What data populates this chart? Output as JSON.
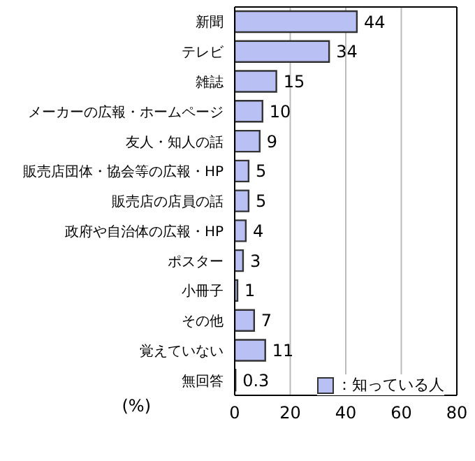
{
  "chart_data": {
    "type": "bar",
    "orientation": "horizontal",
    "categories": [
      "新聞",
      "テレビ",
      "雑誌",
      "メーカーの広報・ホームページ",
      "友人・知人の話",
      "販売店団体・協会等の広報・HP",
      "販売店の店員の話",
      "政府や自治体の広報・HP",
      "ポスター",
      "小冊子",
      "その他",
      "覚えていない",
      "無回答"
    ],
    "series": [
      {
        "name": "：知っている人",
        "color": "#b8c0f4",
        "values": [
          44,
          34,
          15,
          10,
          9,
          5,
          5,
          4,
          3,
          1,
          7,
          11,
          0.3
        ]
      }
    ],
    "xlabel": "(%)",
    "xlim": [
      0,
      80
    ],
    "xticks": [
      0,
      20,
      40,
      60,
      80
    ],
    "grid": "x",
    "data_labels": true,
    "legend": "bottom right"
  }
}
